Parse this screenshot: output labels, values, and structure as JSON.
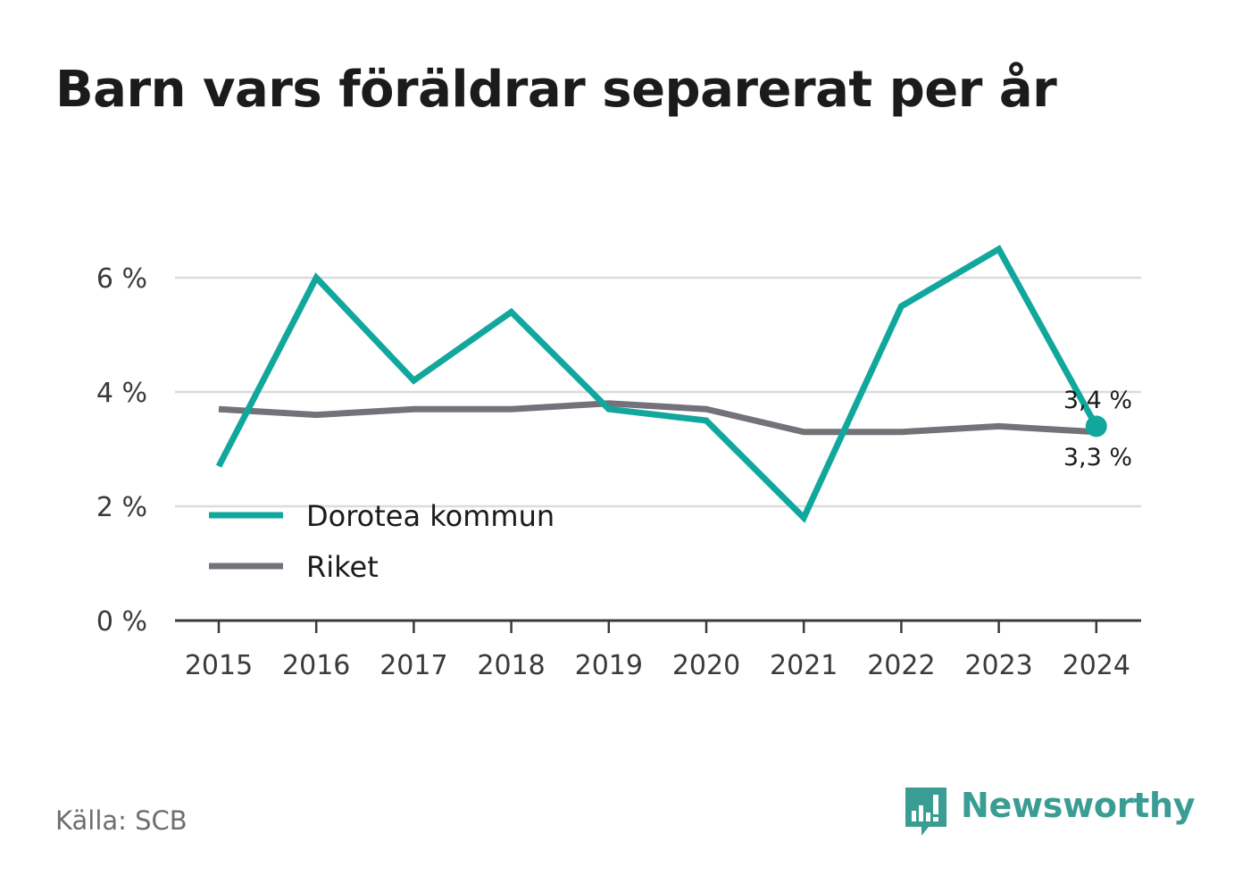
{
  "title": "Barn vars föräldrar separerat per år",
  "source": "Källa: SCB",
  "brand": {
    "name": "Newsworthy",
    "icon": "newsworthy-logo-icon"
  },
  "colors": {
    "primary": "#12a79d",
    "secondary": "#737278",
    "grid": "#dcdcdf",
    "axis": "#3a3a3a"
  },
  "chart_data": {
    "type": "line",
    "x": [
      "2015",
      "2016",
      "2017",
      "2018",
      "2019",
      "2020",
      "2021",
      "2022",
      "2023",
      "2024"
    ],
    "y_ticks": [
      "0 %",
      "2 %",
      "4 %",
      "6 %"
    ],
    "y_tick_values": [
      0,
      2,
      4,
      6
    ],
    "ylim": [
      0,
      6.8
    ],
    "grid": true,
    "legend_position": "bottom-left",
    "series": [
      {
        "name": "Dorotea kommun",
        "color": "#12a79d",
        "values": [
          2.7,
          6.0,
          4.2,
          5.4,
          3.7,
          3.5,
          1.8,
          5.5,
          6.5,
          3.4
        ],
        "end_label": "3,4 %"
      },
      {
        "name": "Riket",
        "color": "#737278",
        "values": [
          3.7,
          3.6,
          3.7,
          3.7,
          3.8,
          3.7,
          3.3,
          3.3,
          3.4,
          3.3
        ],
        "end_label": "3,3 %"
      }
    ]
  }
}
